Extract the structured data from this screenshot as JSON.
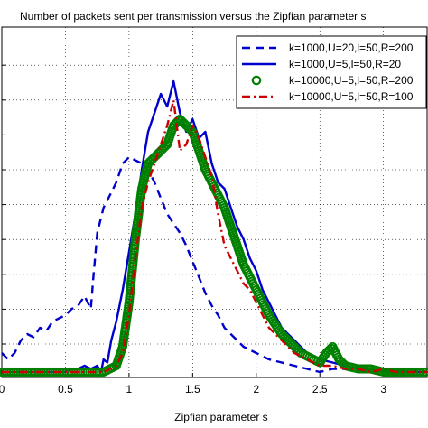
{
  "chart_data": {
    "type": "line",
    "title": "Number of packets sent per transmission versus the Zipfian parameter s",
    "xlabel": "Zipfian parameter s",
    "ylabel": "",
    "xlim": [
      0,
      3.35
    ],
    "ylim": [
      0,
      1
    ],
    "xticks": [
      0,
      0.5,
      1,
      1.5,
      2,
      2.5,
      3
    ],
    "xtick_labels": [
      "0",
      "0.5",
      "1",
      "1.5",
      "2",
      "2.5",
      "3"
    ],
    "ytick_count": 9,
    "grid": true,
    "legend_position": "top-right",
    "series": [
      {
        "name": "k=1000,U=20,l=50,R=200",
        "color": "#0000cc",
        "style": "dashed",
        "x": [
          0,
          0.05,
          0.1,
          0.15,
          0.2,
          0.25,
          0.3,
          0.35,
          0.4,
          0.45,
          0.5,
          0.55,
          0.6,
          0.65,
          0.7,
          0.72,
          0.75,
          0.8,
          0.85,
          0.9,
          0.95,
          1.0,
          1.05,
          1.1,
          1.15,
          1.2,
          1.25,
          1.3,
          1.35,
          1.4,
          1.45,
          1.5,
          1.55,
          1.6,
          1.65,
          1.7,
          1.75,
          1.8,
          1.85,
          1.9,
          1.95,
          2.0,
          2.05,
          2.1,
          2.2,
          2.3,
          2.4,
          2.5,
          2.6,
          2.7,
          2.8,
          2.9,
          3.0,
          3.2,
          3.35
        ],
        "y": [
          0.06,
          0.04,
          0.06,
          0.1,
          0.12,
          0.11,
          0.14,
          0.13,
          0.16,
          0.17,
          0.18,
          0.2,
          0.21,
          0.24,
          0.2,
          0.3,
          0.44,
          0.52,
          0.56,
          0.6,
          0.66,
          0.68,
          0.67,
          0.66,
          0.64,
          0.6,
          0.55,
          0.5,
          0.47,
          0.44,
          0.4,
          0.35,
          0.3,
          0.25,
          0.21,
          0.18,
          0.14,
          0.12,
          0.1,
          0.08,
          0.07,
          0.06,
          0.05,
          0.04,
          0.03,
          0.02,
          0.01,
          0.0,
          0.01,
          0.01,
          0.0,
          0.01,
          0.0,
          0.01,
          0.0
        ]
      },
      {
        "name": "k=1000,U=5,l=50,R=20",
        "color": "#0000cc",
        "style": "solid",
        "x": [
          0,
          0.2,
          0.4,
          0.5,
          0.55,
          0.6,
          0.65,
          0.7,
          0.75,
          0.78,
          0.8,
          0.83,
          0.86,
          0.9,
          0.95,
          1.0,
          1.05,
          1.1,
          1.15,
          1.2,
          1.25,
          1.3,
          1.35,
          1.4,
          1.45,
          1.5,
          1.55,
          1.6,
          1.65,
          1.7,
          1.75,
          1.8,
          1.85,
          1.9,
          1.95,
          2.0,
          2.05,
          2.1,
          2.15,
          2.2,
          2.25,
          2.3,
          2.35,
          2.4,
          2.45,
          2.5,
          2.6,
          2.7,
          2.8,
          2.9,
          3.0,
          3.1,
          3.2,
          3.35
        ],
        "y": [
          0.0,
          0.0,
          0.0,
          0.0,
          0.01,
          0.01,
          0.02,
          0.01,
          0.02,
          0.0,
          0.04,
          0.03,
          0.1,
          0.16,
          0.26,
          0.38,
          0.5,
          0.64,
          0.76,
          0.82,
          0.88,
          0.84,
          0.92,
          0.82,
          0.76,
          0.8,
          0.74,
          0.76,
          0.66,
          0.6,
          0.58,
          0.52,
          0.46,
          0.42,
          0.36,
          0.32,
          0.26,
          0.22,
          0.18,
          0.14,
          0.12,
          0.1,
          0.08,
          0.06,
          0.05,
          0.04,
          0.03,
          0.02,
          0.01,
          0.01,
          0.0,
          0.01,
          0.0,
          0.0
        ]
      },
      {
        "name": "k=10000,U=5,l=50,R=200",
        "color": "#008000",
        "style": "circles",
        "x": [
          0,
          0.2,
          0.4,
          0.6,
          0.8,
          0.9,
          0.95,
          1.0,
          1.05,
          1.1,
          1.15,
          1.2,
          1.25,
          1.3,
          1.35,
          1.4,
          1.45,
          1.5,
          1.55,
          1.6,
          1.65,
          1.7,
          1.75,
          1.8,
          1.85,
          1.9,
          1.95,
          2.0,
          2.05,
          2.1,
          2.15,
          2.2,
          2.25,
          2.3,
          2.35,
          2.4,
          2.45,
          2.5,
          2.55,
          2.6,
          2.65,
          2.7,
          2.8,
          2.9,
          3.0,
          3.1,
          3.2,
          3.35
        ],
        "y": [
          0.0,
          0.0,
          0.0,
          0.0,
          0.0,
          0.02,
          0.08,
          0.22,
          0.42,
          0.58,
          0.66,
          0.68,
          0.7,
          0.72,
          0.78,
          0.8,
          0.78,
          0.76,
          0.7,
          0.64,
          0.6,
          0.56,
          0.52,
          0.46,
          0.4,
          0.34,
          0.3,
          0.26,
          0.22,
          0.18,
          0.15,
          0.12,
          0.1,
          0.08,
          0.06,
          0.05,
          0.04,
          0.03,
          0.06,
          0.08,
          0.04,
          0.02,
          0.01,
          0.01,
          0.0,
          0.0,
          0.0,
          0.0
        ]
      },
      {
        "name": "k=10000,U=5,l=50,R=100",
        "color": "#cc0000",
        "style": "dashdot",
        "x": [
          0,
          0.2,
          0.4,
          0.6,
          0.8,
          0.9,
          0.95,
          1.0,
          1.05,
          1.1,
          1.15,
          1.2,
          1.25,
          1.3,
          1.35,
          1.4,
          1.45,
          1.5,
          1.55,
          1.6,
          1.65,
          1.7,
          1.75,
          1.8,
          1.85,
          1.9,
          1.95,
          2.0,
          2.05,
          2.1,
          2.15,
          2.2,
          2.25,
          2.3,
          2.35,
          2.4,
          2.45,
          2.5,
          2.6,
          2.7,
          2.8,
          2.9,
          3.0,
          3.1,
          3.2,
          3.35
        ],
        "y": [
          0.0,
          0.0,
          0.0,
          0.0,
          0.0,
          0.02,
          0.06,
          0.18,
          0.36,
          0.52,
          0.6,
          0.66,
          0.72,
          0.78,
          0.86,
          0.7,
          0.72,
          0.78,
          0.74,
          0.68,
          0.62,
          0.5,
          0.4,
          0.36,
          0.32,
          0.28,
          0.26,
          0.22,
          0.18,
          0.14,
          0.12,
          0.1,
          0.08,
          0.06,
          0.05,
          0.04,
          0.03,
          0.02,
          0.02,
          0.01,
          0.01,
          0.0,
          0.01,
          0.0,
          0.0,
          0.0
        ]
      }
    ]
  }
}
